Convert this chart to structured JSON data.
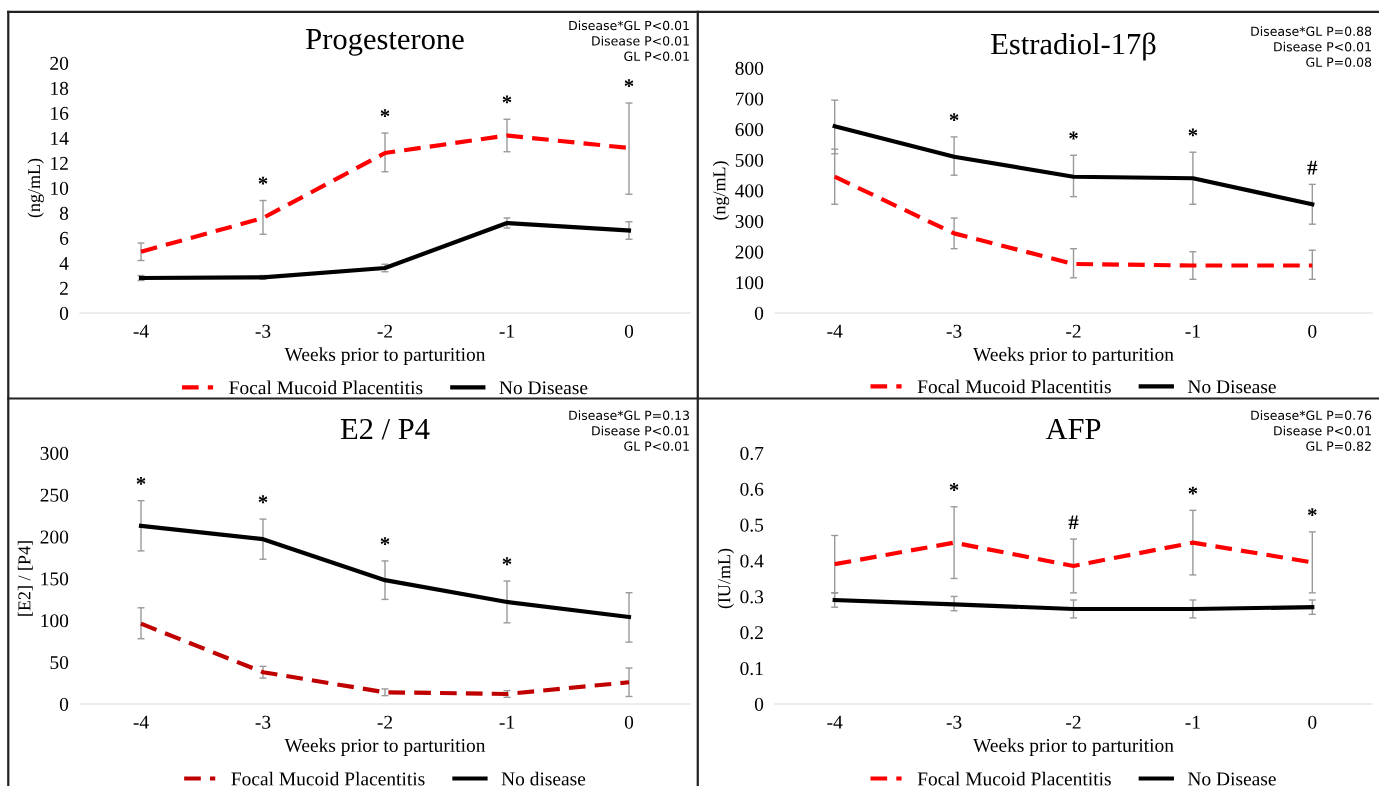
{
  "chart_data": [
    {
      "type": "line",
      "title": "Progesterone",
      "xlabel": "Weeks prior to parturition",
      "ylabel": "(ng/mL)",
      "categories": [
        "-4",
        "-3",
        "-2",
        "-1",
        "0"
      ],
      "ylim": [
        0,
        20
      ],
      "yticks": [
        0,
        2,
        4,
        6,
        8,
        10,
        12,
        14,
        16,
        18,
        20
      ],
      "grid": false,
      "legend": "bottom",
      "marker": "none",
      "series": [
        {
          "name": "Focal Mucoid Placentitis",
          "color": "#ff0000",
          "line_style": "dashed",
          "values": [
            4.9,
            7.6,
            12.8,
            14.2,
            13.2
          ],
          "errors": [
            [
              4.2,
              5.6
            ],
            [
              6.3,
              9.0
            ],
            [
              11.3,
              14.4
            ],
            [
              12.9,
              15.5
            ],
            [
              9.5,
              16.8
            ]
          ]
        },
        {
          "name": "No Disease",
          "color": "#000000",
          "line_style": "solid",
          "values": [
            2.8,
            2.85,
            3.6,
            7.2,
            6.6
          ],
          "errors": [
            [
              2.6,
              3.0
            ],
            [
              2.7,
              3.0
            ],
            [
              3.3,
              3.9
            ],
            [
              6.8,
              7.6
            ],
            [
              5.9,
              7.3
            ]
          ]
        }
      ],
      "annotations": [
        "Disease*GL P<0.01",
        "Disease P<0.01",
        "GL P<0.01",
        {
          "text": "*",
          "x": "-3",
          "y": 9.0
        },
        {
          "text": "*",
          "x": "-2",
          "y": 14.4
        },
        {
          "text": "*",
          "x": "-1",
          "y": 15.5
        },
        {
          "text": "*",
          "x": "0",
          "y": 16.8
        }
      ]
    },
    {
      "type": "line",
      "title": "Estradiol-17β",
      "xlabel": "Weeks prior to parturition",
      "ylabel": "(ng/mL)",
      "categories": [
        "-4",
        "-3",
        "-2",
        "-1",
        "0"
      ],
      "ylim": [
        0,
        800
      ],
      "yticks": [
        0,
        100,
        200,
        300,
        400,
        500,
        600,
        700,
        800
      ],
      "grid": false,
      "legend": "bottom",
      "marker": "none",
      "series": [
        {
          "name": "Focal Mucoid Placentitis",
          "color": "#ff0000",
          "line_style": "dashed",
          "values": [
            445,
            260,
            160,
            155,
            155
          ],
          "errors": [
            [
              355,
              535
            ],
            [
              210,
              310
            ],
            [
              115,
              210
            ],
            [
              110,
              200
            ],
            [
              110,
              205
            ]
          ]
        },
        {
          "name": "No Disease",
          "color": "#000000",
          "line_style": "solid",
          "values": [
            610,
            510,
            445,
            440,
            355
          ],
          "errors": [
            [
              520,
              695
            ],
            [
              450,
              575
            ],
            [
              380,
              515
            ],
            [
              355,
              525
            ],
            [
              290,
              420
            ]
          ]
        }
      ],
      "annotations": [
        "Disease*GL P=0.88",
        "Disease P<0.01",
        "GL P=0.08",
        {
          "text": "*",
          "x": "-3",
          "y": 575
        },
        {
          "text": "*",
          "x": "-2",
          "y": 515
        },
        {
          "text": "*",
          "x": "-1",
          "y": 525
        },
        {
          "text": "#",
          "x": "0",
          "y": 420
        }
      ]
    },
    {
      "type": "line",
      "title": "E2 / P4",
      "xlabel": "Weeks prior to parturition",
      "ylabel": "[E2] / [P4]",
      "categories": [
        "-4",
        "-3",
        "-2",
        "-1",
        "0"
      ],
      "ylim": [
        0,
        300
      ],
      "yticks": [
        0,
        50,
        100,
        150,
        200,
        250,
        300
      ],
      "grid": false,
      "legend": "bottom",
      "marker": "none",
      "series": [
        {
          "name": "Focal Mucoid Placentitis",
          "color": "#c00000",
          "line_style": "dashed",
          "values": [
            96,
            38,
            14,
            12,
            26
          ],
          "errors": [
            [
              78,
              115
            ],
            [
              31,
              45
            ],
            [
              10,
              18
            ],
            [
              8,
              16
            ],
            [
              9,
              43
            ]
          ]
        },
        {
          "name": "No disease",
          "color": "#000000",
          "line_style": "solid",
          "values": [
            213,
            197,
            148,
            122,
            104
          ],
          "errors": [
            [
              183,
              243
            ],
            [
              173,
              221
            ],
            [
              125,
              171
            ],
            [
              97,
              147
            ],
            [
              74,
              133
            ]
          ]
        }
      ],
      "annotations": [
        "Disease*GL P=0.13",
        "Disease P<0.01",
        "GL P<0.01",
        {
          "text": "*",
          "x": "-4",
          "y": 243
        },
        {
          "text": "*",
          "x": "-3",
          "y": 221
        },
        {
          "text": "*",
          "x": "-2",
          "y": 171
        },
        {
          "text": "*",
          "x": "-1",
          "y": 147
        }
      ]
    },
    {
      "type": "line",
      "title": "AFP",
      "xlabel": "Weeks prior to parturition",
      "ylabel": "(IU/mL)",
      "categories": [
        "-4",
        "-3",
        "-2",
        "-1",
        "0"
      ],
      "ylim": [
        0,
        0.7
      ],
      "yticks": [
        0,
        0.1,
        0.2,
        0.3,
        0.4,
        0.5,
        0.6,
        0.7
      ],
      "grid": false,
      "legend": "bottom",
      "marker": "none",
      "series": [
        {
          "name": "Focal Mucoid Placentitis",
          "color": "#ff0000",
          "line_style": "dashed",
          "values": [
            0.39,
            0.45,
            0.385,
            0.45,
            0.395
          ],
          "errors": [
            [
              0.31,
              0.47
            ],
            [
              0.35,
              0.55
            ],
            [
              0.31,
              0.46
            ],
            [
              0.36,
              0.54
            ],
            [
              0.31,
              0.48
            ]
          ]
        },
        {
          "name": "No Disease",
          "color": "#000000",
          "line_style": "solid",
          "values": [
            0.29,
            0.278,
            0.265,
            0.265,
            0.27
          ],
          "errors": [
            [
              0.27,
              0.31
            ],
            [
              0.26,
              0.3
            ],
            [
              0.24,
              0.29
            ],
            [
              0.24,
              0.29
            ],
            [
              0.25,
              0.29
            ]
          ]
        }
      ],
      "annotations": [
        "Disease*GL P=0.76",
        "Disease P<0.01",
        "GL P=0.82",
        {
          "text": "*",
          "x": "-3",
          "y": 0.55
        },
        {
          "text": "#",
          "x": "-2",
          "y": 0.46
        },
        {
          "text": "*",
          "x": "-1",
          "y": 0.54
        },
        {
          "text": "*",
          "x": "0",
          "y": 0.48
        }
      ]
    }
  ]
}
